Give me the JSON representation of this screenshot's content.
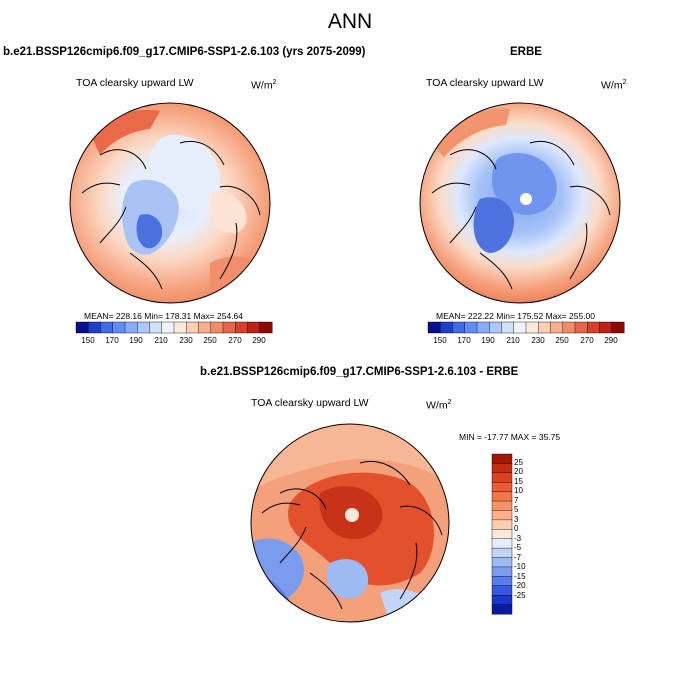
{
  "page_title": "ANN",
  "panels": {
    "model": {
      "title": "b.e21.BSSP126cmip6.f09_g17.CMIP6-SSP1-2.6.103 (yrs 2075-2099)",
      "variable_label": "TOA clearsky upward LW",
      "units_base": "W/m",
      "units_exp": "2",
      "stats": "MEAN= 228.16  Min= 178.31  Max= 254.64"
    },
    "obs": {
      "title": "ERBE",
      "variable_label": "TOA clearsky upward LW",
      "units_base": "W/m",
      "units_exp": "2",
      "stats": "MEAN= 222.22  Min= 175.52  Max= 255.00"
    },
    "diff": {
      "title": "b.e21.BSSP126cmip6.f09_g17.CMIP6-SSP1-2.6.103 - ERBE",
      "variable_label": "TOA clearsky upward LW",
      "units_base": "W/m",
      "units_exp": "2",
      "stats": "MIN = -17.77 MAX =  35.75"
    }
  },
  "colorbar_abs": {
    "ticks": [
      "150",
      "170",
      "190",
      "210",
      "230",
      "250",
      "270",
      "290"
    ],
    "colors": [
      "#08108c",
      "#1f3fc8",
      "#3d6de0",
      "#5f8cef",
      "#86acf6",
      "#aac8fb",
      "#cde0fc",
      "#eef3fe",
      "#fde9dc",
      "#fbcfb6",
      "#f7ae8d",
      "#f28b66",
      "#e86647",
      "#d8412f",
      "#bb2218",
      "#8c0a06"
    ]
  },
  "colorbar_diff": {
    "ticks": [
      "25",
      "20",
      "15",
      "10",
      "7",
      "5",
      "3",
      "0",
      "-3",
      "-5",
      "-7",
      "-10",
      "-15",
      "-20",
      "-25"
    ],
    "colors": [
      "#a31505",
      "#c52c0e",
      "#dc4220",
      "#ea5a33",
      "#f1764a",
      "#f69468",
      "#f9b08b",
      "#fbccae",
      "#fde8d8",
      "#e4edfb",
      "#c3d5f7",
      "#9dbaf3",
      "#7b9cee",
      "#577ceb",
      "#3459e0",
      "#1b36cc",
      "#0b1a9e"
    ]
  }
}
